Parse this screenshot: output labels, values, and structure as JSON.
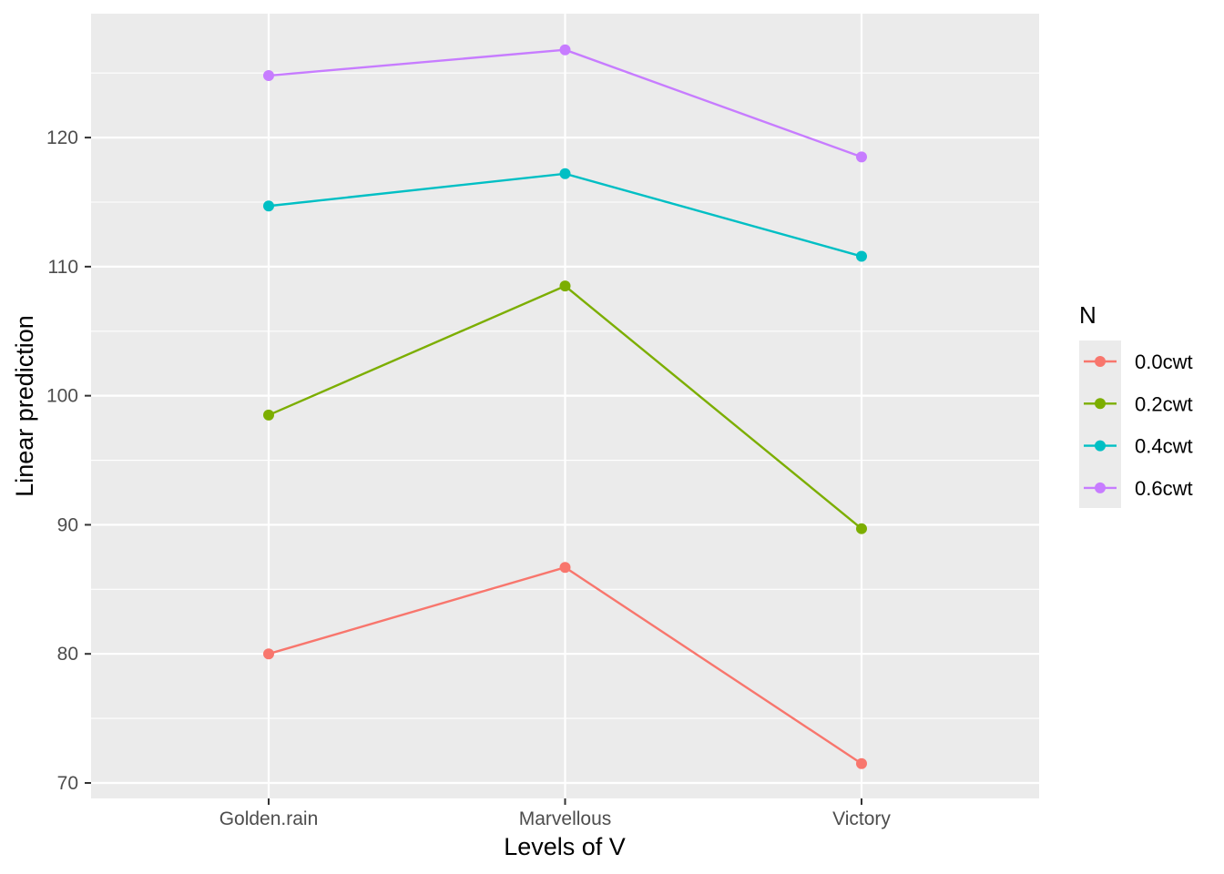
{
  "chart_data": {
    "type": "line",
    "title": "",
    "xlabel": "Levels of V",
    "ylabel": "Linear prediction",
    "categories": [
      "Golden.rain",
      "Marvellous",
      "Victory"
    ],
    "ylim": [
      68.8,
      129.6
    ],
    "yticks": [
      70,
      80,
      90,
      100,
      110,
      120
    ],
    "yticks_minor": [
      75,
      85,
      95,
      105,
      115,
      125
    ],
    "grid": true,
    "legend": {
      "title": "N",
      "position": "right"
    },
    "series": [
      {
        "name": "0.0cwt",
        "color": "#F8766D",
        "values": [
          80.0,
          86.7,
          71.5
        ]
      },
      {
        "name": "0.2cwt",
        "color": "#7CAE00",
        "values": [
          98.5,
          108.5,
          89.7
        ]
      },
      {
        "name": "0.4cwt",
        "color": "#00BFC4",
        "values": [
          114.7,
          117.2,
          110.8
        ]
      },
      {
        "name": "0.6cwt",
        "color": "#C77CFF",
        "values": [
          124.8,
          126.8,
          118.5
        ]
      }
    ]
  }
}
